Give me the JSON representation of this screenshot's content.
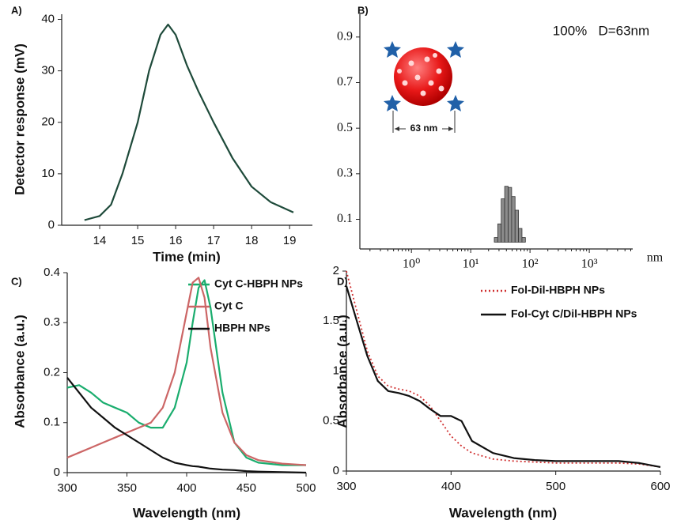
{
  "chart_data": [
    {
      "type": "line",
      "panel_label": "A)",
      "x_label": "Time (min)",
      "y_label": "Detector response (mV)",
      "x": [
        13.6,
        14.0,
        14.3,
        14.6,
        15.0,
        15.3,
        15.6,
        15.8,
        16.0,
        16.3,
        16.6,
        17.0,
        17.5,
        18.0,
        18.5,
        19.1
      ],
      "values": [
        1,
        1.8,
        4,
        10,
        20,
        30,
        37,
        39,
        37,
        31,
        26,
        20,
        13,
        7.5,
        4.5,
        2.5
      ],
      "color": "#1e4a3a",
      "xlim": [
        13.0,
        19.6
      ],
      "ylim": [
        0,
        41
      ],
      "xticks": [
        14,
        15,
        16,
        17,
        18,
        19
      ],
      "yticks": [
        0,
        10,
        20,
        30,
        40
      ]
    },
    {
      "type": "histogram",
      "panel_label": "B)",
      "x_label": "nm",
      "annotation": "100%   D=63nm",
      "inset_label": "63 nm",
      "bins": [
        25,
        28.6,
        32.7,
        37.4,
        42.8,
        49,
        56,
        64,
        73.2,
        83.7
      ],
      "values": [
        0.02,
        0.08,
        0.19,
        0.245,
        0.24,
        0.2,
        0.14,
        0.06,
        0.02
      ],
      "color": "#8c8c8c",
      "xlog": true,
      "xlim": [
        0.135,
        5400
      ],
      "ylim": [
        -0.03,
        1.0
      ],
      "xticks": [
        {
          "value": 1,
          "label": "10⁰"
        },
        {
          "value": 10,
          "label": "10¹"
        },
        {
          "value": 100,
          "label": "10²"
        },
        {
          "value": 1000,
          "label": "10³"
        }
      ],
      "yticks": [
        0.1,
        0.3,
        0.5,
        0.7,
        0.9
      ]
    },
    {
      "type": "line",
      "panel_label": "C)",
      "x_label": "Wavelength (nm)",
      "y_label": "Absorbance (a.u.)",
      "x": [
        300,
        310,
        320,
        330,
        340,
        350,
        360,
        370,
        380,
        390,
        400,
        405,
        410,
        415,
        420,
        430,
        440,
        450,
        460,
        480,
        500
      ],
      "series": [
        {
          "name": "Cyt C-HBPH NPs",
          "color": "#1aad6e",
          "values": [
            0.17,
            0.175,
            0.16,
            0.14,
            0.13,
            0.12,
            0.1,
            0.09,
            0.09,
            0.13,
            0.22,
            0.3,
            0.37,
            0.385,
            0.33,
            0.16,
            0.06,
            0.03,
            0.02,
            0.015,
            0.015
          ]
        },
        {
          "name": "Cyt C",
          "color": "#cc6666",
          "values": [
            0.03,
            0.04,
            0.05,
            0.06,
            0.07,
            0.08,
            0.09,
            0.1,
            0.13,
            0.2,
            0.32,
            0.38,
            0.39,
            0.35,
            0.25,
            0.12,
            0.06,
            0.035,
            0.025,
            0.018,
            0.015
          ]
        },
        {
          "name": "HBPH NPs",
          "color": "#111111",
          "values": [
            0.19,
            0.16,
            0.13,
            0.11,
            0.09,
            0.075,
            0.06,
            0.045,
            0.03,
            0.02,
            0.015,
            0.013,
            0.012,
            0.01,
            0.008,
            0.006,
            0.005,
            0.003,
            0.002,
            0.001,
            0
          ]
        }
      ],
      "xlim": [
        300,
        500
      ],
      "ylim": [
        0,
        0.4
      ],
      "xticks": [
        300,
        350,
        400,
        450,
        500
      ],
      "yticks": [
        0,
        0.1,
        0.2,
        0.3,
        0.4
      ]
    },
    {
      "type": "line",
      "panel_label": "D)",
      "x_label": "Wavelength (nm)",
      "y_label": "Absorbance (a.u.)",
      "x": [
        300,
        310,
        320,
        330,
        340,
        350,
        360,
        370,
        380,
        390,
        400,
        410,
        420,
        440,
        460,
        480,
        500,
        520,
        540,
        560,
        580,
        600
      ],
      "series": [
        {
          "name": "Fol-Dil-HBPH NPs",
          "color": "#d03030",
          "style": "dotted",
          "values": [
            2.0,
            1.6,
            1.2,
            0.95,
            0.85,
            0.82,
            0.8,
            0.75,
            0.65,
            0.5,
            0.35,
            0.25,
            0.18,
            0.12,
            0.1,
            0.09,
            0.08,
            0.08,
            0.08,
            0.08,
            0.07,
            0.04
          ]
        },
        {
          "name": "Fol-Cyt C/Dil-HBPH NPs",
          "color": "#111111",
          "style": "solid",
          "values": [
            1.85,
            1.5,
            1.15,
            0.9,
            0.8,
            0.78,
            0.75,
            0.7,
            0.62,
            0.55,
            0.55,
            0.5,
            0.3,
            0.18,
            0.13,
            0.11,
            0.1,
            0.1,
            0.1,
            0.1,
            0.08,
            0.04
          ]
        }
      ],
      "xlim": [
        300,
        600
      ],
      "ylim": [
        0,
        2
      ],
      "xticks": [
        300,
        400,
        500,
        600
      ],
      "yticks": [
        0,
        0.5,
        1,
        1.5,
        2
      ]
    }
  ]
}
